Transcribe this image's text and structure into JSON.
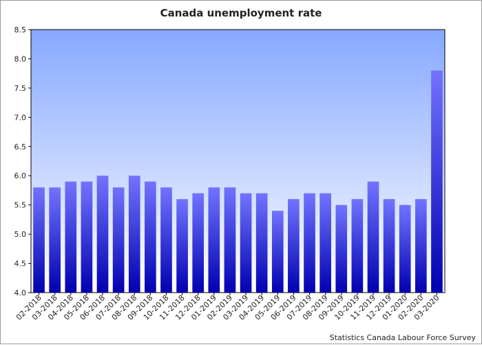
{
  "chart_data": {
    "type": "bar",
    "title": "Canada unemployment rate",
    "xlabel": "",
    "ylabel": "",
    "ylim": [
      4.0,
      8.5
    ],
    "yticks": [
      "4.0",
      "4.5",
      "5.0",
      "5.5",
      "6.0",
      "6.5",
      "7.0",
      "7.5",
      "8.0",
      "8.5"
    ],
    "categories": [
      "02-2018",
      "03-2018",
      "04-2018",
      "05-2018",
      "06-2018",
      "07-2018",
      "08-2018",
      "09-2018",
      "10-2018",
      "11-2018",
      "12-2018",
      "01-2019",
      "02-2019",
      "03-2019",
      "04-2019",
      "05-2019",
      "06-2019",
      "07-2019",
      "08-2019",
      "09-2019",
      "10-2019",
      "11-2019",
      "12-2019",
      "01-2020",
      "02-2020",
      "03-2020"
    ],
    "values": [
      5.8,
      5.8,
      5.9,
      5.9,
      6.0,
      5.8,
      6.0,
      5.9,
      5.8,
      5.6,
      5.7,
      5.8,
      5.8,
      5.7,
      5.7,
      5.4,
      5.6,
      5.7,
      5.7,
      5.5,
      5.6,
      5.9,
      5.6,
      5.5,
      5.6,
      7.8
    ],
    "grid": false,
    "legend": "none",
    "source": "Statistics Canada Labour Force Survey",
    "colors": {
      "bar_top": "#7373ff",
      "bar_bottom": "#0000b0",
      "plot_bg_top": "#86a8ff",
      "plot_bg_bottom": "#ffffff"
    }
  }
}
